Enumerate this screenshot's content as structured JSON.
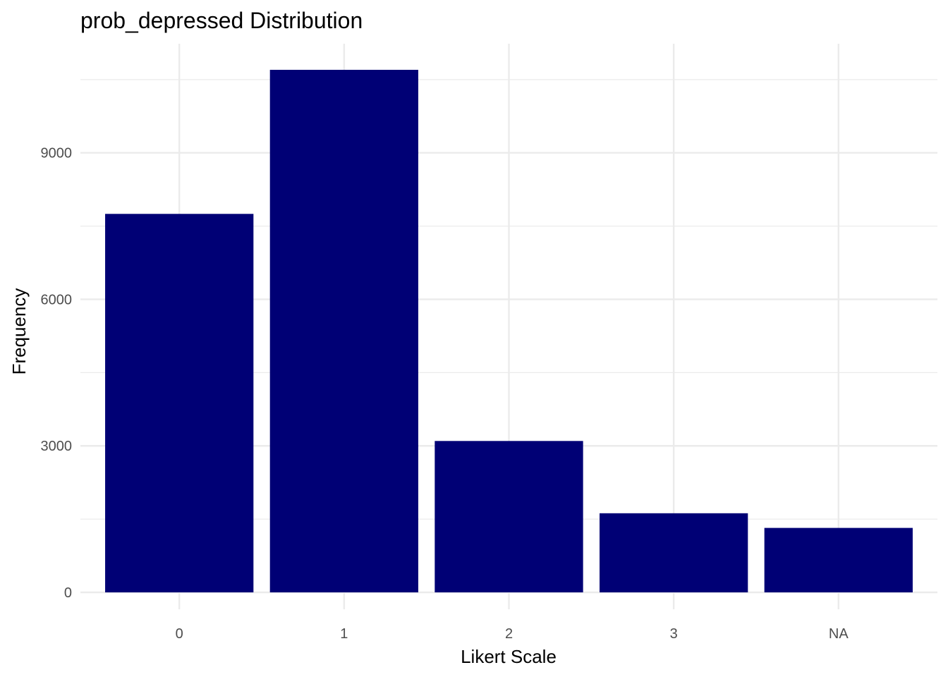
{
  "chart_data": {
    "type": "bar",
    "title": "prob_depressed Distribution",
    "xlabel": "Likert Scale",
    "ylabel": "Frequency",
    "categories": [
      "0",
      "1",
      "2",
      "3",
      "NA"
    ],
    "values": [
      7750,
      10700,
      3100,
      1620,
      1320
    ],
    "yticks": [
      0,
      3000,
      6000,
      9000
    ],
    "ylim": [
      0,
      10700
    ],
    "bar_color": "#000075",
    "grid": true,
    "grid_color": "#ebebeb"
  }
}
